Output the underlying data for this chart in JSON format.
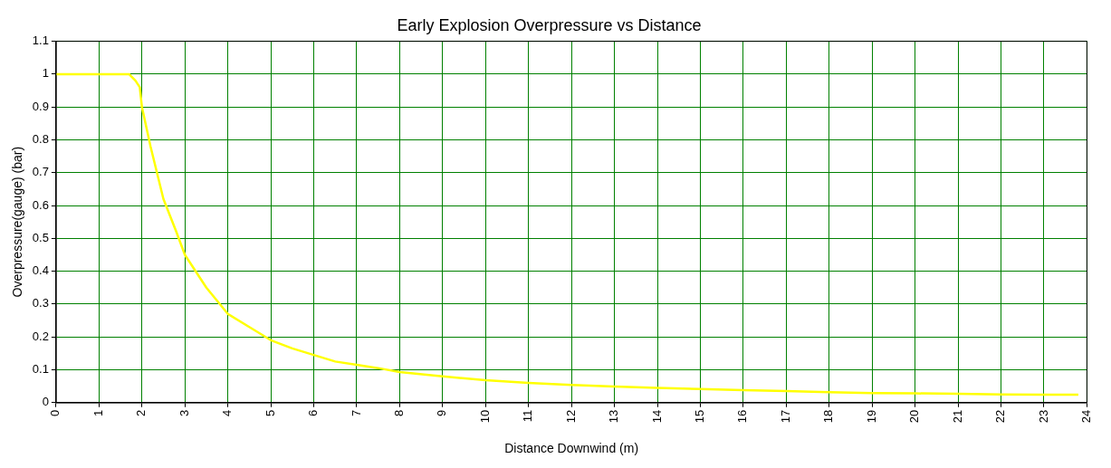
{
  "chart_data": {
    "type": "line",
    "title": "Early Explosion Overpressure vs Distance",
    "xlabel": "Distance Downwind (m)",
    "ylabel": "Overpressure(gauge) (bar)",
    "x": [
      0,
      1,
      1.7,
      1.85,
      1.95,
      2,
      2.2,
      2.5,
      2.8,
      3,
      3.5,
      4,
      4.5,
      5,
      5.5,
      6,
      6.5,
      7,
      7.5,
      8,
      9,
      10,
      11,
      12,
      13,
      14,
      15,
      16,
      17,
      18,
      19,
      20,
      21,
      22,
      23,
      23.8
    ],
    "series": [
      {
        "color": "#ffff00",
        "values": [
          1,
          1,
          1,
          0.98,
          0.96,
          0.9,
          0.78,
          0.62,
          0.52,
          0.45,
          0.35,
          0.27,
          0.23,
          0.19,
          0.165,
          0.145,
          0.125,
          0.115,
          0.105,
          0.093,
          0.08,
          0.068,
          0.06,
          0.054,
          0.049,
          0.045,
          0.041,
          0.038,
          0.035,
          0.032,
          0.029,
          0.028,
          0.027,
          0.025,
          0.024,
          0.024
        ]
      }
    ],
    "xlim": [
      0,
      24
    ],
    "xticks": [
      0,
      1,
      2,
      3,
      4,
      5,
      6,
      7,
      8,
      9,
      10,
      11,
      12,
      13,
      14,
      15,
      16,
      17,
      18,
      19,
      20,
      21,
      22,
      23,
      24
    ],
    "ylim": [
      0,
      1.1
    ],
    "yticks": [
      0,
      0.1,
      0.2,
      0.3,
      0.4,
      0.5,
      0.6,
      0.7,
      0.8,
      0.9,
      1,
      1.1
    ],
    "grid": true,
    "legend": false,
    "marker": "none",
    "line_style": "solid"
  }
}
